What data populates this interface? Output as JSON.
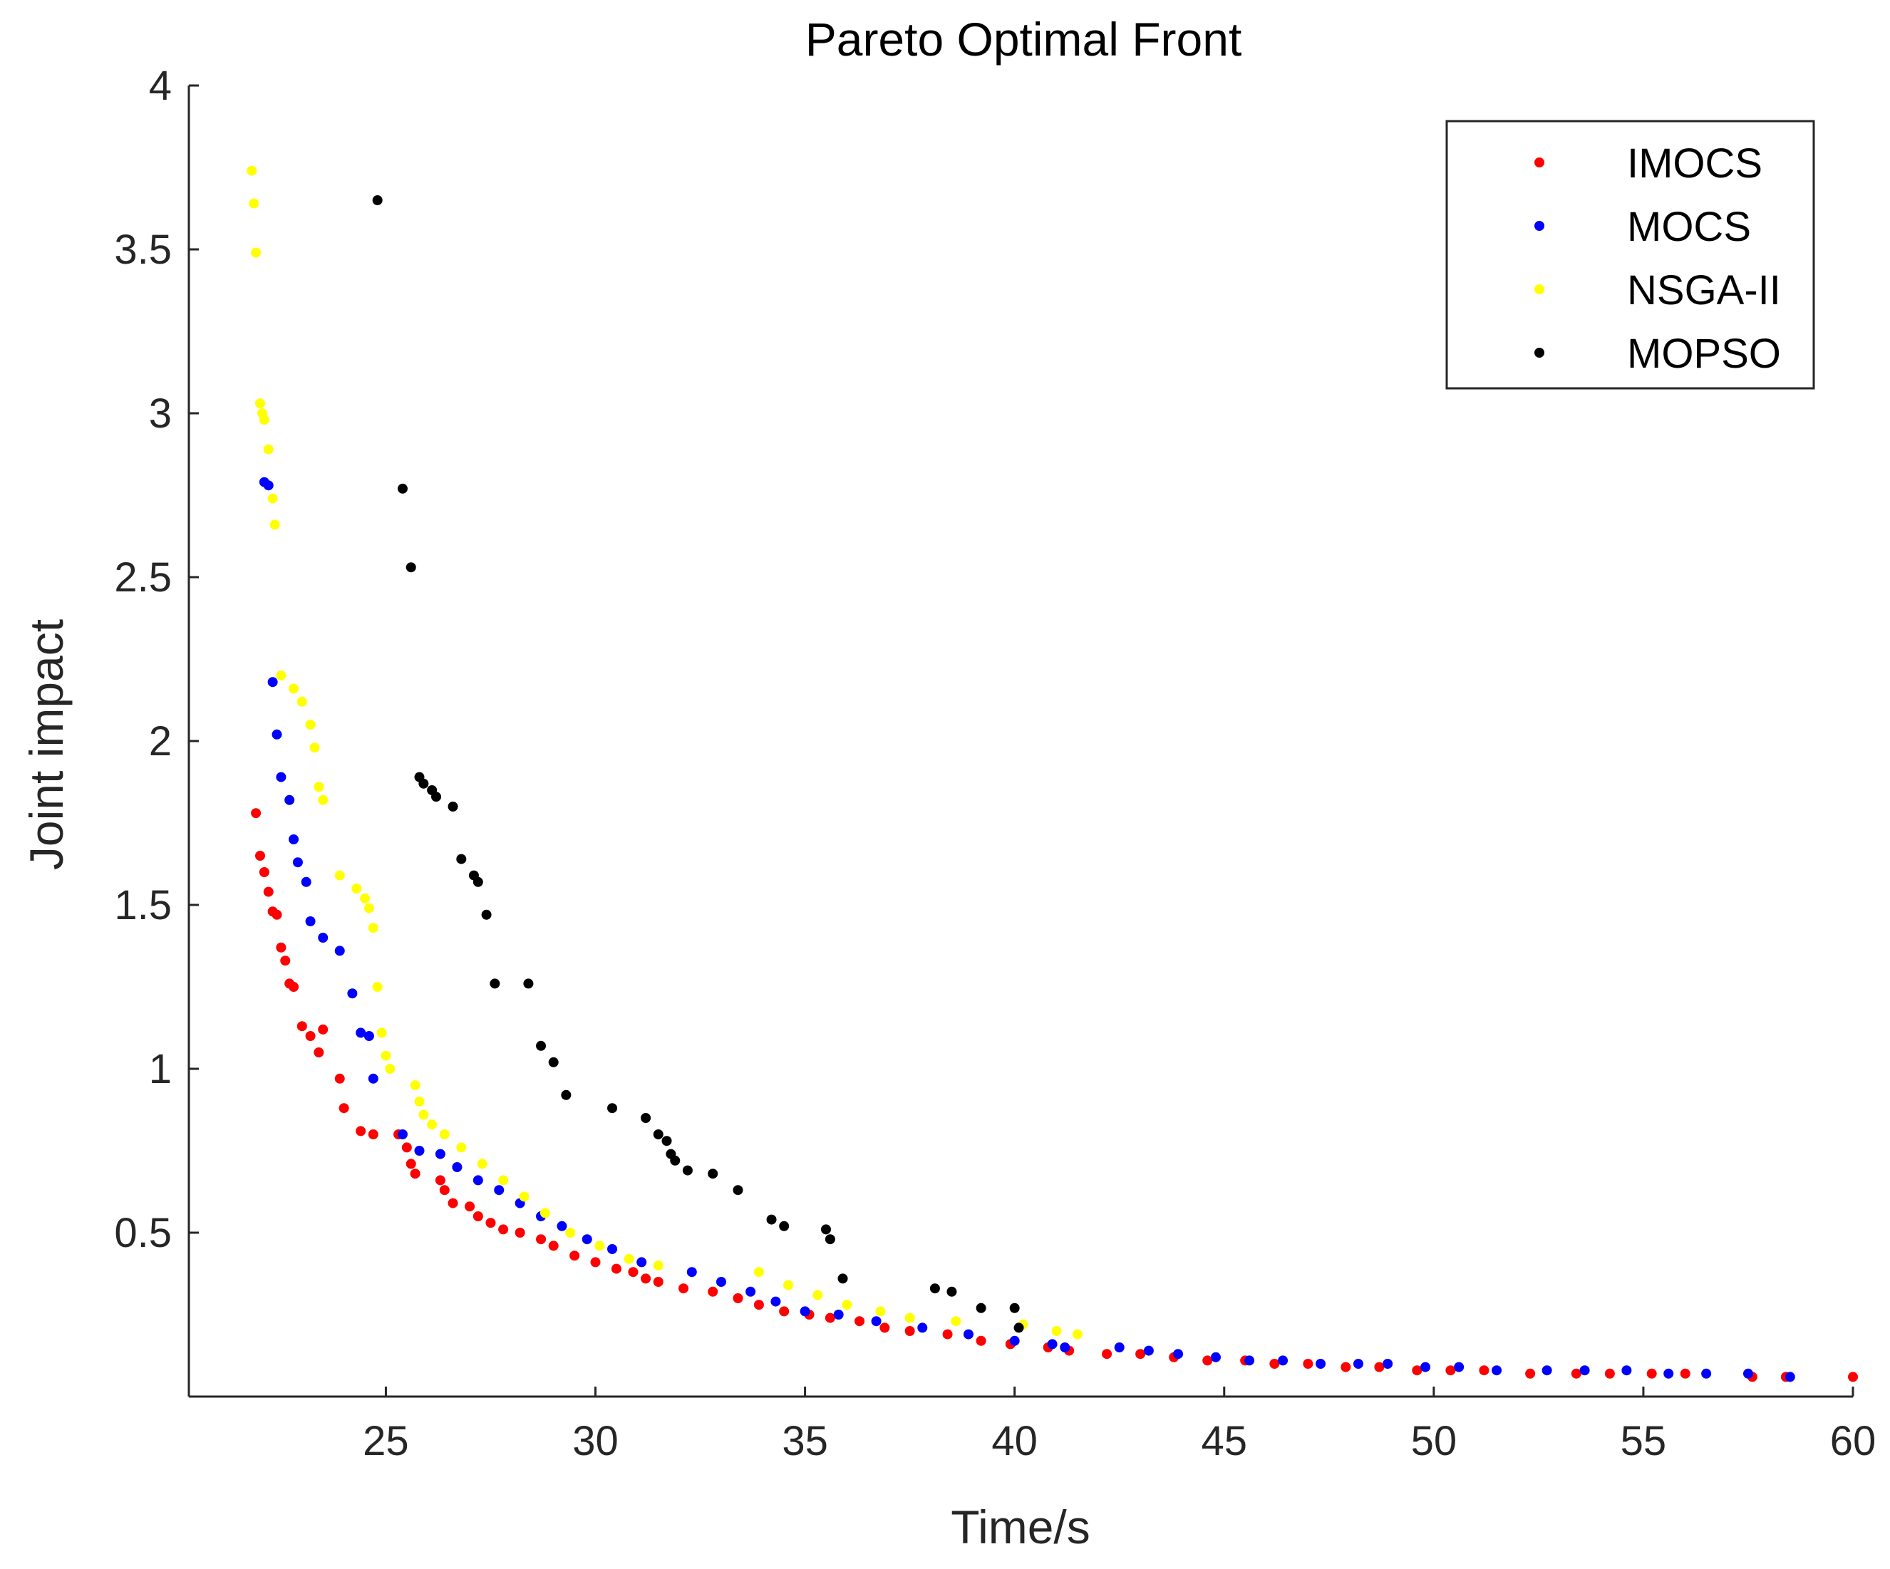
{
  "chart_data": {
    "type": "scatter",
    "title": "Pareto Optimal Front",
    "xlabel": "Time/s",
    "ylabel": "Joint impact",
    "xlim": [
      20.3,
      60
    ],
    "ylim": [
      0,
      4
    ],
    "xticks": [
      25,
      30,
      35,
      40,
      45,
      50,
      55,
      60
    ],
    "xtick_labels": [
      "25",
      "30",
      "35",
      "40",
      "45",
      "50",
      "55",
      "60"
    ],
    "yticks": [
      0.5,
      1,
      1.5,
      2,
      2.5,
      3,
      3.5,
      4
    ],
    "ytick_labels": [
      "0.5",
      "1",
      "1.5",
      "2",
      "2.5",
      "3",
      "3.5",
      "4"
    ],
    "grid": false,
    "legend_position": "top-right",
    "series": [
      {
        "name": "IMOCS",
        "color": "#ff0000",
        "x": [
          21.9,
          22.0,
          22.1,
          22.2,
          22.3,
          22.4,
          22.5,
          22.6,
          22.7,
          22.8,
          23.0,
          23.2,
          23.4,
          23.5,
          23.9,
          24.0,
          24.4,
          24.7,
          25.3,
          25.5,
          25.6,
          25.7,
          26.3,
          26.4,
          26.6,
          27.0,
          27.2,
          27.5,
          27.8,
          28.2,
          28.7,
          29.0,
          29.5,
          30.0,
          30.5,
          30.9,
          31.2,
          31.5,
          32.1,
          32.8,
          33.4,
          33.9,
          34.5,
          35.1,
          35.6,
          36.3,
          36.9,
          37.5,
          38.4,
          39.2,
          39.9,
          40.8,
          41.3,
          42.2,
          43.0,
          43.8,
          44.6,
          45.5,
          46.2,
          47.0,
          47.9,
          48.7,
          49.6,
          50.4,
          51.2,
          52.3,
          53.4,
          54.2,
          55.2,
          56.0,
          57.6,
          58.4,
          60.0
        ],
        "y": [
          1.78,
          1.65,
          1.6,
          1.54,
          1.48,
          1.47,
          1.37,
          1.33,
          1.26,
          1.25,
          1.13,
          1.1,
          1.05,
          1.12,
          0.97,
          0.88,
          0.81,
          0.8,
          0.8,
          0.76,
          0.71,
          0.68,
          0.66,
          0.63,
          0.59,
          0.58,
          0.55,
          0.53,
          0.51,
          0.5,
          0.48,
          0.46,
          0.43,
          0.41,
          0.39,
          0.38,
          0.36,
          0.35,
          0.33,
          0.32,
          0.3,
          0.28,
          0.26,
          0.25,
          0.24,
          0.23,
          0.21,
          0.2,
          0.19,
          0.17,
          0.16,
          0.15,
          0.14,
          0.13,
          0.13,
          0.12,
          0.11,
          0.11,
          0.1,
          0.1,
          0.09,
          0.09,
          0.08,
          0.08,
          0.08,
          0.07,
          0.07,
          0.07,
          0.07,
          0.07,
          0.06,
          0.06,
          0.06
        ]
      },
      {
        "name": "MOCS",
        "color": "#0000ff",
        "x": [
          22.1,
          22.2,
          22.3,
          22.4,
          22.5,
          22.7,
          22.8,
          22.9,
          23.1,
          23.2,
          23.5,
          23.9,
          24.2,
          24.4,
          24.6,
          24.7,
          25.4,
          25.8,
          26.3,
          26.7,
          27.2,
          27.7,
          28.2,
          28.7,
          29.2,
          29.8,
          30.4,
          31.1,
          32.3,
          33.0,
          33.7,
          34.3,
          35.0,
          35.8,
          36.7,
          37.8,
          38.9,
          40.0,
          40.9,
          41.2,
          42.5,
          43.2,
          43.9,
          44.8,
          45.6,
          46.4,
          47.3,
          48.2,
          48.9,
          49.8,
          50.6,
          51.5,
          52.7,
          53.6,
          54.6,
          55.6,
          56.5,
          57.5,
          58.5
        ],
        "y": [
          2.79,
          2.78,
          2.18,
          2.02,
          1.89,
          1.82,
          1.7,
          1.63,
          1.57,
          1.45,
          1.4,
          1.36,
          1.23,
          1.11,
          1.1,
          0.97,
          0.8,
          0.75,
          0.74,
          0.7,
          0.66,
          0.63,
          0.59,
          0.55,
          0.52,
          0.48,
          0.45,
          0.41,
          0.38,
          0.35,
          0.32,
          0.29,
          0.26,
          0.25,
          0.23,
          0.21,
          0.19,
          0.17,
          0.16,
          0.15,
          0.15,
          0.14,
          0.13,
          0.12,
          0.11,
          0.11,
          0.1,
          0.1,
          0.1,
          0.09,
          0.09,
          0.08,
          0.08,
          0.08,
          0.08,
          0.07,
          0.07,
          0.07,
          0.06
        ]
      },
      {
        "name": "NSGA-II",
        "color": "#ffff00",
        "x": [
          21.8,
          21.85,
          21.9,
          22.0,
          22.05,
          22.1,
          22.2,
          22.3,
          22.35,
          22.5,
          22.8,
          23.0,
          23.2,
          23.3,
          23.4,
          23.5,
          23.9,
          24.3,
          24.5,
          24.6,
          24.7,
          24.8,
          24.9,
          25.0,
          25.1,
          25.7,
          25.8,
          25.9,
          26.1,
          26.4,
          26.8,
          27.3,
          27.8,
          28.3,
          28.8,
          29.4,
          30.1,
          30.8,
          31.5,
          33.9,
          34.6,
          35.3,
          36.0,
          36.8,
          37.5,
          38.6,
          40.2,
          41.0,
          41.5
        ],
        "y": [
          3.74,
          3.64,
          3.49,
          3.03,
          3.0,
          2.98,
          2.89,
          2.74,
          2.66,
          2.2,
          2.16,
          2.12,
          2.05,
          1.98,
          1.86,
          1.82,
          1.59,
          1.55,
          1.52,
          1.49,
          1.43,
          1.25,
          1.11,
          1.04,
          1.0,
          0.95,
          0.9,
          0.86,
          0.83,
          0.8,
          0.76,
          0.71,
          0.66,
          0.61,
          0.56,
          0.5,
          0.46,
          0.42,
          0.4,
          0.38,
          0.34,
          0.31,
          0.28,
          0.26,
          0.24,
          0.23,
          0.22,
          0.2,
          0.19
        ]
      },
      {
        "name": "MOPSO",
        "color": "#000000",
        "x": [
          24.8,
          25.4,
          25.6,
          25.8,
          25.9,
          26.1,
          26.2,
          26.6,
          26.8,
          27.1,
          27.2,
          27.4,
          27.6,
          28.4,
          28.7,
          29.0,
          29.3,
          30.4,
          31.2,
          31.5,
          31.7,
          31.8,
          31.9,
          32.2,
          32.8,
          33.4,
          34.2,
          34.5,
          35.5,
          35.6,
          35.9,
          38.1,
          38.5,
          39.2,
          40.0,
          40.1
        ],
        "y": [
          3.65,
          2.77,
          2.53,
          1.89,
          1.87,
          1.85,
          1.83,
          1.8,
          1.64,
          1.59,
          1.57,
          1.47,
          1.26,
          1.26,
          1.07,
          1.02,
          0.92,
          0.88,
          0.85,
          0.8,
          0.78,
          0.74,
          0.72,
          0.69,
          0.68,
          0.63,
          0.54,
          0.52,
          0.51,
          0.48,
          0.36,
          0.33,
          0.32,
          0.27,
          0.27,
          0.21
        ]
      }
    ]
  }
}
